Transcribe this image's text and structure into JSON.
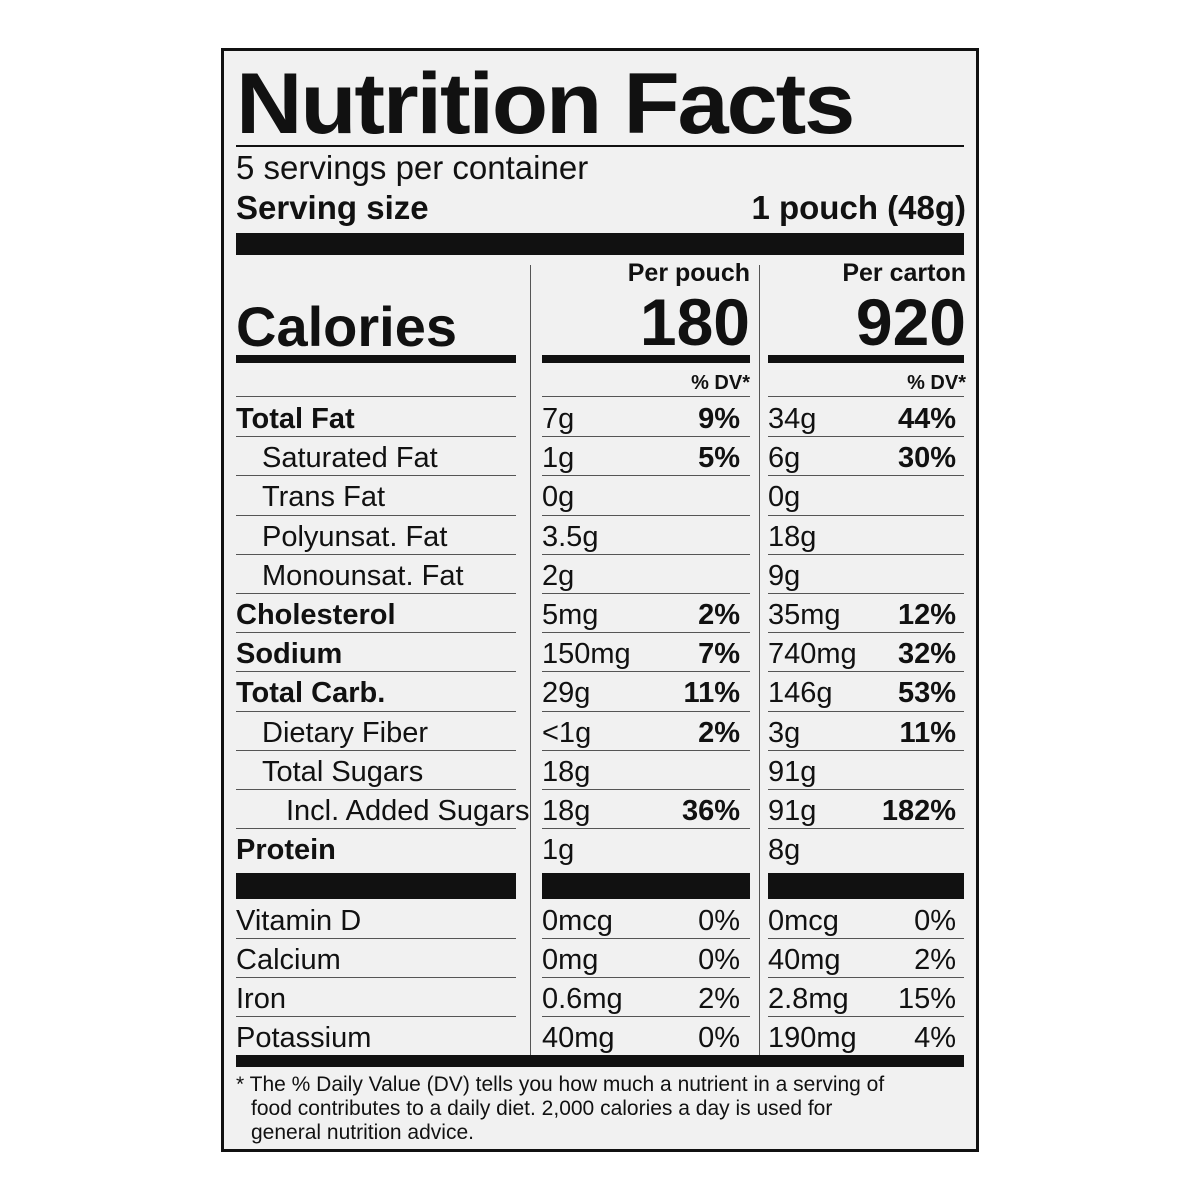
{
  "label": {
    "title": "Nutrition Facts",
    "servings_per_container": "5 servings per container",
    "serving_size_label": "Serving size",
    "serving_size_value": "1 pouch (48g)",
    "calories_label": "Calories",
    "per_pouch_label": "Per pouch",
    "per_carton_label": "Per carton",
    "calories_pouch": "180",
    "calories_carton": "920",
    "dv_header": "% DV*"
  },
  "nutrients": [
    {
      "name": "Total Fat",
      "pouch_amount": "7g",
      "pouch_dv": "9%",
      "carton_amount": "34g",
      "carton_dv": "44%"
    },
    {
      "name": "Saturated Fat",
      "pouch_amount": "1g",
      "pouch_dv": "5%",
      "carton_amount": "6g",
      "carton_dv": "30%"
    },
    {
      "name": "Trans Fat",
      "pouch_amount": "0g",
      "pouch_dv": "",
      "carton_amount": "0g",
      "carton_dv": ""
    },
    {
      "name": "Polyunsat. Fat",
      "pouch_amount": "3.5g",
      "pouch_dv": "",
      "carton_amount": "18g",
      "carton_dv": ""
    },
    {
      "name": "Monounsat. Fat",
      "pouch_amount": "2g",
      "pouch_dv": "",
      "carton_amount": "9g",
      "carton_dv": ""
    },
    {
      "name": "Cholesterol",
      "pouch_amount": "5mg",
      "pouch_dv": "2%",
      "carton_amount": "35mg",
      "carton_dv": "12%"
    },
    {
      "name": "Sodium",
      "pouch_amount": "150mg",
      "pouch_dv": "7%",
      "carton_amount": "740mg",
      "carton_dv": "32%"
    },
    {
      "name": "Total Carb.",
      "pouch_amount": "29g",
      "pouch_dv": "11%",
      "carton_amount": "146g",
      "carton_dv": "53%"
    },
    {
      "name": "Dietary Fiber",
      "pouch_amount": "<1g",
      "pouch_dv": "2%",
      "carton_amount": "3g",
      "carton_dv": "11%"
    },
    {
      "name": "Total Sugars",
      "pouch_amount": "18g",
      "pouch_dv": "",
      "carton_amount": "91g",
      "carton_dv": ""
    },
    {
      "name": "Incl. Added Sugars",
      "pouch_amount": "18g",
      "pouch_dv": "36%",
      "carton_amount": "91g",
      "carton_dv": "182%"
    },
    {
      "name": "Protein",
      "pouch_amount": "1g",
      "pouch_dv": "",
      "carton_amount": "8g",
      "carton_dv": ""
    }
  ],
  "vitamins": [
    {
      "name": "Vitamin D",
      "pouch_amount": "0mcg",
      "pouch_dv": "0%",
      "carton_amount": "0mcg",
      "carton_dv": "0%"
    },
    {
      "name": "Calcium",
      "pouch_amount": "0mg",
      "pouch_dv": "0%",
      "carton_amount": "40mg",
      "carton_dv": "2%"
    },
    {
      "name": "Iron",
      "pouch_amount": "0.6mg",
      "pouch_dv": "2%",
      "carton_amount": "2.8mg",
      "carton_dv": "15%"
    },
    {
      "name": "Potassium",
      "pouch_amount": "40mg",
      "pouch_dv": "0%",
      "carton_amount": "190mg",
      "carton_dv": "4%"
    }
  ],
  "footnote": {
    "line1": "* The % Daily Value (DV) tells you how much a nutrient in a serving of",
    "line2": "food contributes to a daily diet. 2,000 calories a day is used for",
    "line3": "general nutrition advice."
  }
}
